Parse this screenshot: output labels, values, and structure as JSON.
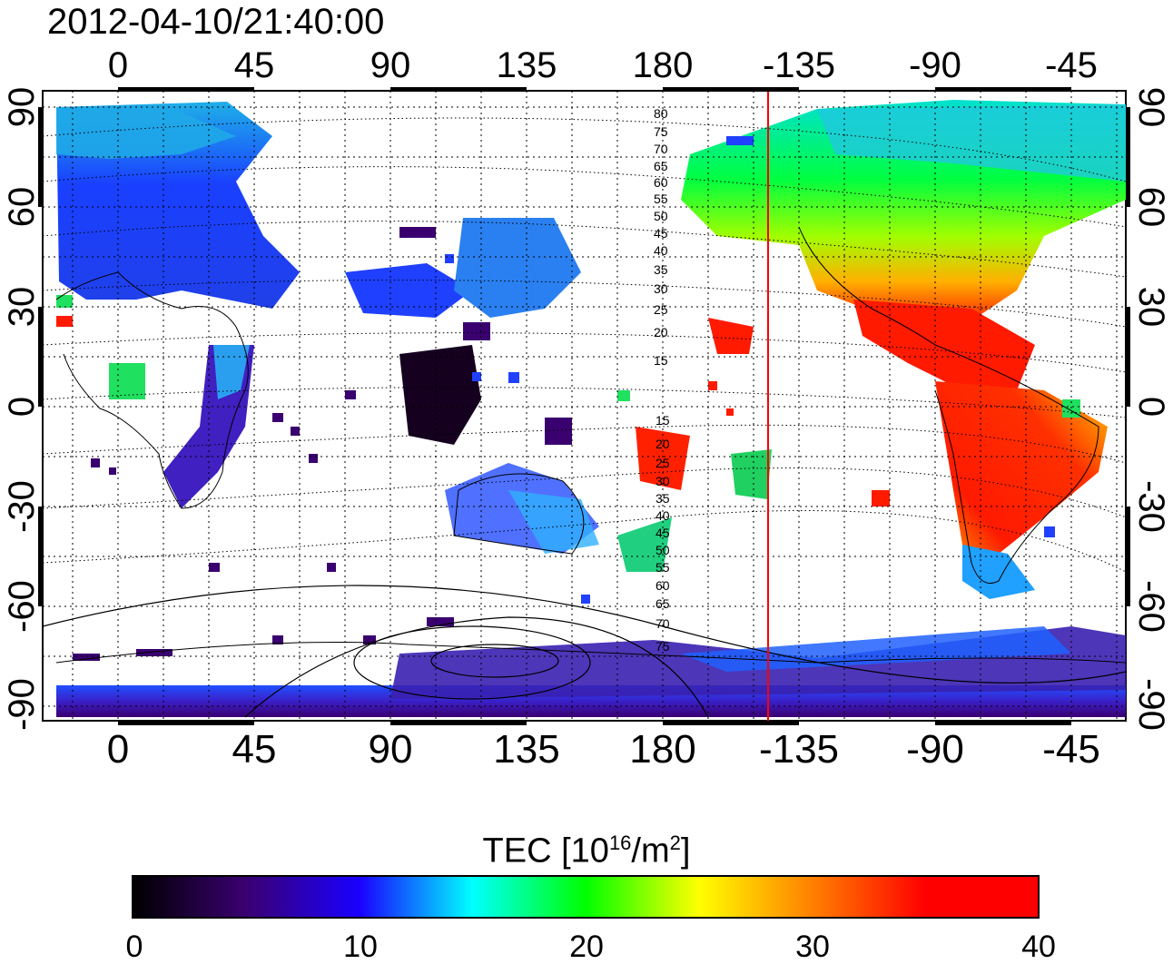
{
  "title": "2012-04-10/21:40:00",
  "map": {
    "lon_ticks": [
      "0",
      "45",
      "90",
      "135",
      "180",
      "-135",
      "-90",
      "-45"
    ],
    "lat_ticks": [
      "90",
      "60",
      "30",
      "0",
      "-30",
      "-60",
      "-90"
    ],
    "magnetic_lat_labels_north": [
      "80",
      "75",
      "70",
      "65",
      "60",
      "55",
      "50",
      "45",
      "40",
      "35",
      "30",
      "25",
      "20",
      "15"
    ],
    "magnetic_lat_labels_south": [
      "15",
      "20",
      "25",
      "30",
      "35",
      "40",
      "45",
      "50",
      "55",
      "60",
      "65",
      "70",
      "75"
    ],
    "terminator_color": "#ff0000",
    "grid": "dotted"
  },
  "colorbar": {
    "label_prefix": "TEC  [10",
    "label_exp1": "16",
    "label_mid": "/m",
    "label_exp2": "2",
    "label_suffix": "]",
    "ticks": [
      "0",
      "10",
      "20",
      "30",
      "40"
    ],
    "min": 0,
    "max": 40,
    "stops": [
      "#000000",
      "#3a0070",
      "#1a00ff",
      "#00ffff",
      "#00ff00",
      "#ffff00",
      "#ff8000",
      "#ff0000",
      "#ff0000"
    ]
  }
}
